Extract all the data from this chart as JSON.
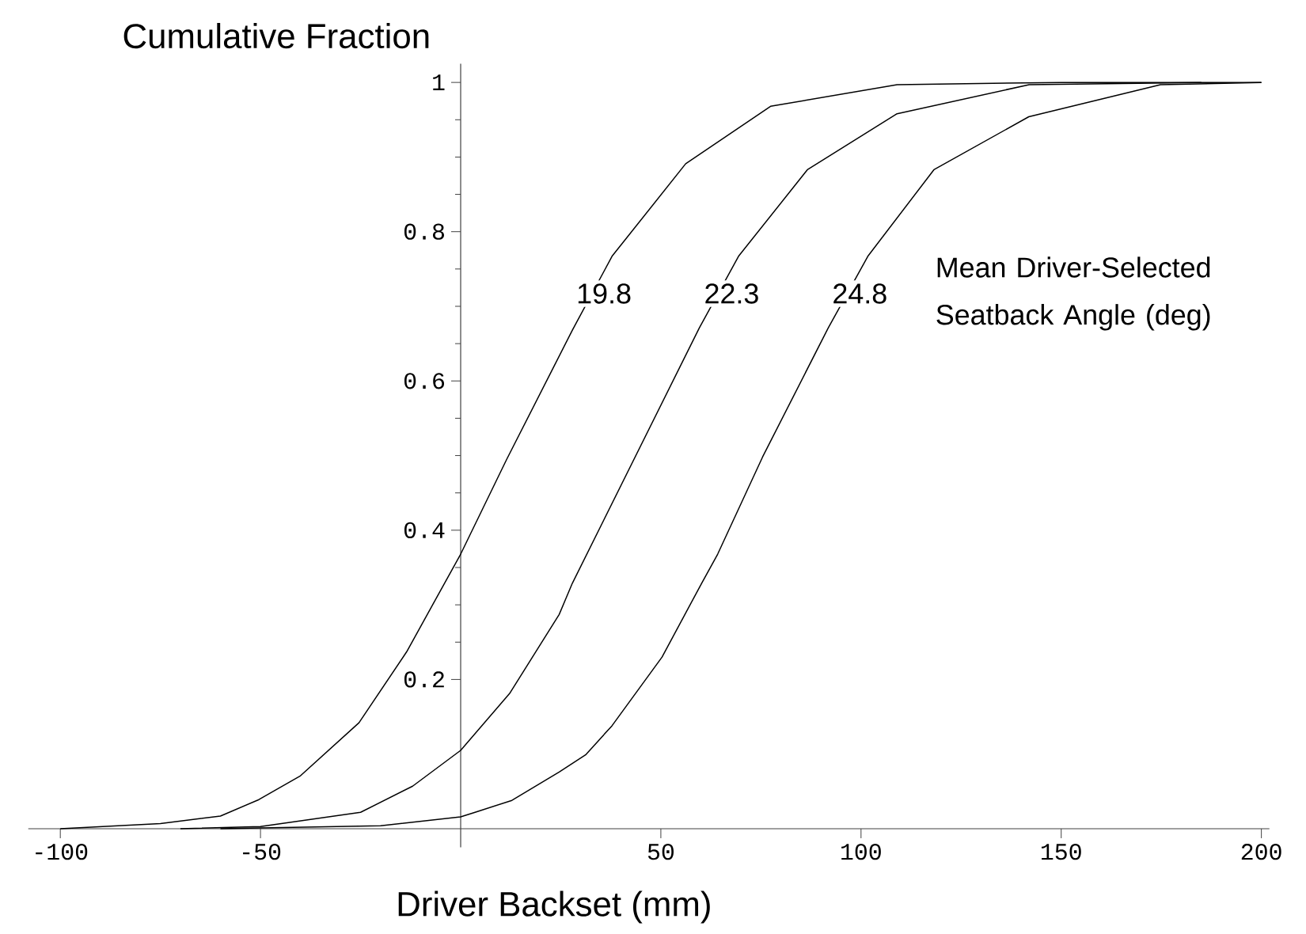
{
  "chart_data": {
    "type": "line",
    "xlabel": "Driver Backset (mm)",
    "ylabel": "Cumulative Fraction",
    "xlim": [
      -108,
      202
    ],
    "ylim": [
      -0.025,
      1.025
    ],
    "xticks": [
      -100,
      -50,
      50,
      100,
      150,
      200
    ],
    "yticks": [
      0.2,
      0.4,
      0.6,
      0.8,
      1
    ],
    "series": [
      {
        "color": "#000000",
        "x": [
          -100,
          -75,
          -60,
          -50.4,
          -40,
          -25.4,
          -13.5,
          0,
          11.5,
          27.9,
          37.8,
          56.2,
          77.4,
          109,
          150,
          200
        ],
        "values": [
          0,
          0.007,
          0.017,
          0.039,
          0.071,
          0.142,
          0.237,
          0.368,
          0.495,
          0.668,
          0.767,
          0.891,
          0.968,
          0.997,
          1,
          1
        ]
      },
      {
        "color": "#000000",
        "x": [
          -70,
          -50,
          -25,
          -12,
          0,
          12.2,
          24.6,
          27.9,
          59.6,
          69.4,
          86.6,
          109,
          142,
          185
        ],
        "values": [
          0,
          0.003,
          0.022,
          0.057,
          0.105,
          0.181,
          0.287,
          0.329,
          0.671,
          0.767,
          0.883,
          0.958,
          0.997,
          1
        ]
      },
      {
        "color": "#000000",
        "x": [
          -60,
          -50,
          -20,
          0,
          3.6,
          12.8,
          24.6,
          31.2,
          37.8,
          50.3,
          60.2,
          64.2,
          75.4,
          91.8,
          101.7,
          118.2,
          141.9,
          174.8,
          200
        ],
        "values": [
          0,
          0.001,
          0.004,
          0.016,
          0.022,
          0.038,
          0.076,
          0.099,
          0.138,
          0.23,
          0.329,
          0.368,
          0.498,
          0.671,
          0.767,
          0.883,
          0.954,
          0.997,
          1
        ]
      }
    ],
    "annotations": [
      {
        "text": "19.8",
        "x": 35.8,
        "y": 0.717
      },
      {
        "text": "22.3",
        "x": 67.7,
        "y": 0.717
      },
      {
        "text": "24.8",
        "x": 99.7,
        "y": 0.717
      },
      "Mean Driver-Selected Seatback Angle (deg)"
    ]
  }
}
